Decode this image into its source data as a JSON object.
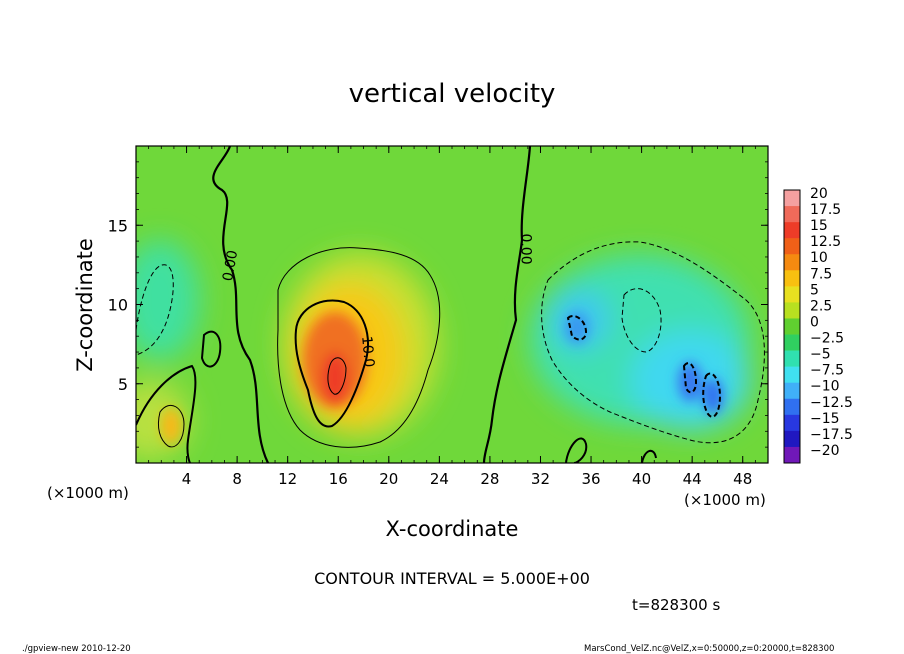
{
  "chart_data": {
    "type": "heatmap",
    "title": "vertical velocity",
    "xlabel": "X-coordinate",
    "ylabel": "Z-coordinate",
    "x_unit_left": "(×1000 m)",
    "x_unit_right": "(×1000 m)",
    "xlim": [
      0,
      50
    ],
    "ylim": [
      0,
      20
    ],
    "x_ticks": [
      4,
      8,
      12,
      16,
      20,
      24,
      28,
      32,
      36,
      40,
      44,
      48
    ],
    "y_ticks": [
      5,
      10,
      15
    ],
    "contour_interval_text": "CONTOUR INTERVAL = 5.000E+00",
    "time_text": "t=828300 s",
    "contour_labels": [
      {
        "text": "0.00",
        "x": 7.8,
        "z": 12.4,
        "rotate": -80
      },
      {
        "text": "10.0",
        "x": 18.0,
        "z": 7.0,
        "rotate": 85
      },
      {
        "text": "0.00",
        "x": 30.5,
        "z": 13.5,
        "rotate": 90
      }
    ],
    "colorbar": {
      "labels": [
        "20",
        "17.5",
        "15",
        "12.5",
        "10",
        "7.5",
        "5",
        "2.5",
        "0",
        "−2.5",
        "−5",
        "−7.5",
        "−10",
        "−12.5",
        "−15",
        "−17.5",
        "−20"
      ],
      "colors": [
        "#f5a0a0",
        "#f06a5a",
        "#ee3c28",
        "#f06018",
        "#f58a10",
        "#f8c010",
        "#e8e020",
        "#b8e020",
        "#60d030",
        "#30d060",
        "#30e0b0",
        "#40e0f0",
        "#40b0f8",
        "#3070f0",
        "#2838e0",
        "#2018c0",
        "#7018b8"
      ]
    },
    "features": [
      {
        "type": "updraft",
        "x": 15.5,
        "z": 5.5,
        "peak": 17.5
      },
      {
        "type": "updraft",
        "x": 2.8,
        "z": 2.3,
        "peak": 7.5
      },
      {
        "type": "downdraft",
        "x": 34.5,
        "z": 8.5,
        "peak": -10
      },
      {
        "type": "downdraft",
        "x": 44.5,
        "z": 4.5,
        "peak": -12.5
      },
      {
        "type": "downdraft",
        "x": 1.5,
        "z": 10.5,
        "peak": -5
      }
    ]
  },
  "footer": {
    "program": "./gpview-new  2010-12-20",
    "source": "MarsCond_VelZ.nc@VelZ,x=0:50000,z=0:20000,t=828300"
  }
}
